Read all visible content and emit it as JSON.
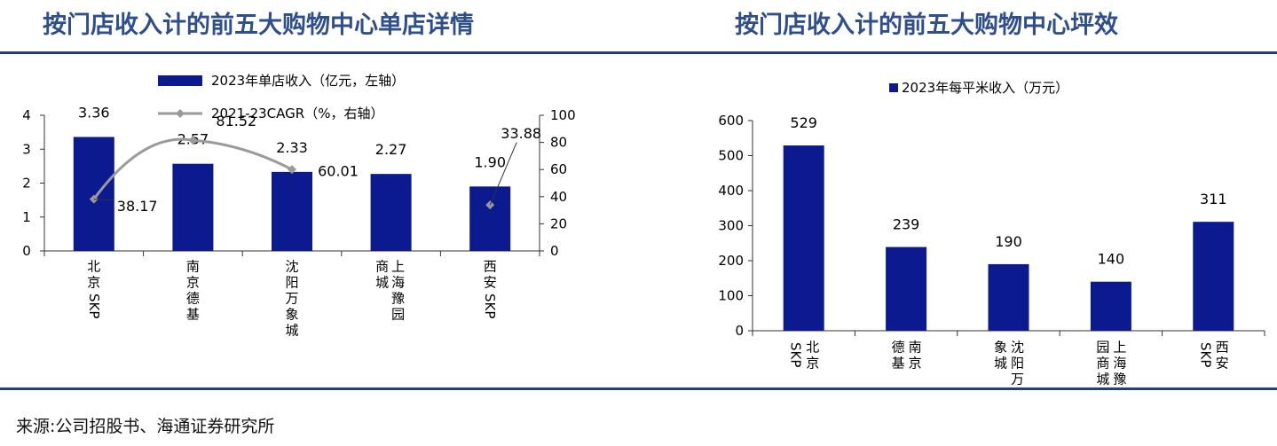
{
  "titles": {
    "left": "按门店收入计的前五大购物中心单店详情",
    "right": "按门店收入计的前五大购物中心坪效"
  },
  "source": "来源:公司招股书、海通证券研究所",
  "colors": {
    "bar": "#0b1a8f",
    "line": "#9a9a9a",
    "title": "#2e4f8c",
    "rule": "#243f7a"
  },
  "chart_data": [
    {
      "type": "bar",
      "categories": [
        "北京SKP",
        "南京德基",
        "沈阳万象城",
        "上海豫园商城",
        "西安SKP"
      ],
      "series": [
        {
          "name": "2023年单店收入（亿元，左轴）",
          "type": "bar",
          "axis": "left",
          "values": [
            3.36,
            2.57,
            2.33,
            2.27,
            1.9
          ],
          "labels": [
            "3.36",
            "2.57",
            "2.33",
            "2.27",
            "1.90"
          ]
        },
        {
          "name": "2021-23CAGR（%，右轴）",
          "type": "line",
          "axis": "right",
          "values": [
            38.17,
            81.52,
            60.01,
            null,
            33.88
          ],
          "labels": [
            "38.17",
            "81.52",
            "60.01",
            "",
            "33.88"
          ]
        }
      ],
      "category_labels": [
        "北京SKP",
        "南京德基",
        "沈阳万象城",
        "上海豫园商城",
        "西安SKP"
      ],
      "ylim_left": [
        0,
        4
      ],
      "yticks_left": [
        "0",
        "1",
        "2",
        "3",
        "4"
      ],
      "ylim_right": [
        0,
        100
      ],
      "yticks_right": [
        "0",
        "20",
        "40",
        "60",
        "80",
        "100"
      ],
      "legend_placement": "top-center"
    },
    {
      "type": "bar",
      "categories": [
        "北京SKP",
        "南京德基",
        "沈阳万象城",
        "上海豫园商城",
        "西安SKP"
      ],
      "series": [
        {
          "name": "2023年每平米收入（万元）",
          "values": [
            529,
            239,
            190,
            140,
            311
          ],
          "labels": [
            "529",
            "239",
            "190",
            "140",
            "311"
          ]
        }
      ],
      "category_labels": [
        "北京SKP",
        "南京德基",
        "沈阳万象城",
        "上海豫园商城",
        "西安SKP"
      ],
      "ylim": [
        0,
        600
      ],
      "yticks": [
        "0",
        "100",
        "200",
        "300",
        "400",
        "500",
        "600"
      ],
      "legend_placement": "top-center"
    }
  ]
}
